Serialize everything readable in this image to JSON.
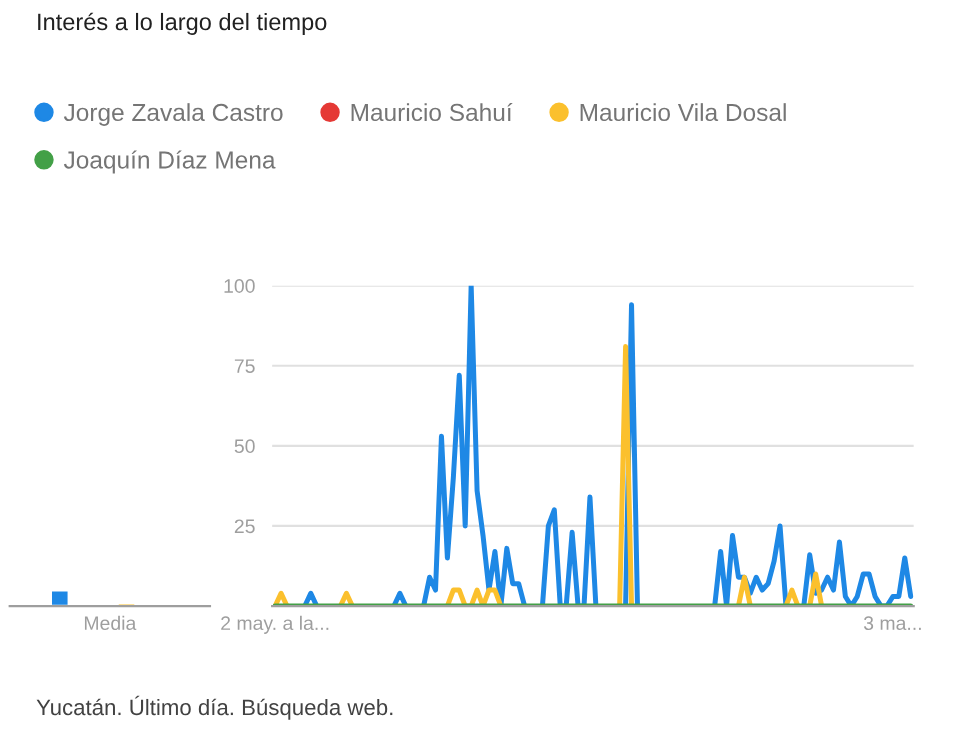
{
  "chart_data": [
    {
      "type": "bar",
      "title": "Interés a lo largo del tiempo",
      "categories": [
        "Media"
      ],
      "ylim": [
        0,
        100
      ],
      "tick_labels": "x",
      "grid": false,
      "legend": false,
      "series": [
        {
          "color": "#1e88e5",
          "values": [
            5
          ]
        },
        {
          "color": "#e53935",
          "values": [
            null
          ]
        },
        {
          "color": "#fbc02d",
          "values": [
            1
          ]
        },
        {
          "color": "#43a047",
          "values": [
            null
          ]
        }
      ]
    },
    {
      "type": "line",
      "annotations": [
        "Yucatán. Último día. Búsqueda web."
      ],
      "ylim": [
        0,
        100
      ],
      "yticks": [
        25,
        50,
        75,
        100
      ],
      "grid": "y",
      "legend": "top left",
      "marker": "none",
      "line_style": "solid",
      "categories": [
        "2 may. a la...",
        null,
        null,
        null,
        null,
        null,
        null,
        null,
        null,
        null,
        null,
        null,
        null,
        null,
        null,
        null,
        null,
        null,
        null,
        null,
        null,
        null,
        null,
        null,
        null,
        null,
        null,
        null,
        null,
        null,
        null,
        null,
        null,
        null,
        null,
        null,
        null,
        null,
        null,
        null,
        null,
        null,
        null,
        null,
        null,
        null,
        null,
        null,
        null,
        null,
        null,
        null,
        null,
        null,
        null,
        null,
        null,
        null,
        null,
        null,
        null,
        null,
        null,
        null,
        null,
        null,
        null,
        null,
        null,
        null,
        null,
        null,
        null,
        null,
        null,
        null,
        null,
        null,
        null,
        null,
        null,
        null,
        null,
        null,
        null,
        null,
        null,
        null,
        null,
        null,
        null,
        null,
        null,
        null,
        null,
        null,
        null,
        null,
        null,
        null,
        null,
        null,
        null,
        null,
        "3 ma...",
        null,
        null,
        null
      ],
      "series": [
        {
          "name": "Jorge Zavala Castro",
          "color": "#1e88e5",
          "values": [
            null,
            null,
            null,
            null,
            null,
            0,
            4,
            0,
            null,
            null,
            null,
            null,
            null,
            null,
            null,
            null,
            null,
            null,
            null,
            null,
            0,
            4,
            0,
            null,
            null,
            0,
            9,
            5,
            53,
            15,
            40,
            72,
            25,
            100,
            36,
            22,
            5,
            17,
            0,
            18,
            7,
            7,
            0,
            null,
            null,
            0,
            25,
            30,
            0,
            0,
            23,
            0,
            0,
            34,
            0,
            null,
            null,
            null,
            null,
            0,
            94,
            0,
            null,
            null,
            null,
            null,
            null,
            null,
            null,
            null,
            null,
            null,
            null,
            null,
            0,
            17,
            0,
            22,
            9,
            9,
            4,
            9,
            5,
            7,
            14,
            25,
            0,
            null,
            null,
            0,
            16,
            4,
            5,
            9,
            5,
            20,
            3,
            0,
            3,
            10,
            10,
            3,
            0,
            0,
            3,
            3,
            15,
            3
          ]
        },
        {
          "name": "Mauricio Sahuí",
          "color": "#e53935",
          "values": [
            null,
            null,
            null,
            null,
            null,
            null,
            null,
            null,
            null,
            null,
            null,
            null,
            null,
            null,
            null,
            null,
            null,
            null,
            null,
            null,
            null,
            null,
            null,
            null,
            null,
            null,
            null,
            null,
            null,
            null,
            null,
            null,
            null,
            null,
            null,
            null,
            null,
            null,
            null,
            null,
            null,
            null,
            null,
            null,
            null,
            null,
            null,
            null,
            null,
            null,
            null,
            null,
            null,
            null,
            null,
            null,
            null,
            null,
            null,
            null,
            null,
            null,
            null,
            null,
            null,
            null,
            null,
            null,
            null,
            null,
            null,
            null,
            null,
            null,
            null,
            null,
            null,
            null,
            null,
            null,
            null,
            null,
            null,
            null,
            null,
            null,
            null,
            null,
            null,
            null,
            null,
            null,
            null,
            null,
            null,
            null,
            null,
            null,
            null,
            null,
            null,
            null,
            null,
            null,
            null,
            null,
            null,
            null
          ]
        },
        {
          "name": "Mauricio Vila Dosal",
          "color": "#fbc02d",
          "values": [
            0,
            4,
            0,
            null,
            null,
            null,
            null,
            null,
            null,
            null,
            null,
            0,
            4,
            0,
            null,
            null,
            null,
            null,
            null,
            null,
            null,
            null,
            null,
            null,
            null,
            null,
            null,
            null,
            null,
            0,
            5,
            5,
            0,
            0,
            5,
            0,
            5,
            5,
            0,
            null,
            null,
            null,
            null,
            null,
            null,
            null,
            null,
            null,
            null,
            null,
            null,
            null,
            null,
            null,
            null,
            null,
            null,
            null,
            0,
            81,
            0,
            null,
            null,
            null,
            null,
            null,
            null,
            null,
            null,
            null,
            null,
            null,
            null,
            null,
            null,
            null,
            null,
            null,
            0,
            9,
            0,
            null,
            null,
            null,
            null,
            null,
            0,
            5,
            0,
            null,
            0,
            10,
            0,
            null,
            null,
            null,
            null,
            null,
            null,
            null,
            null,
            null,
            null,
            null,
            null,
            null,
            null,
            null
          ]
        },
        {
          "name": "Joaquín Díaz Mena",
          "color": "#43a047",
          "values": [
            0,
            0,
            0,
            0,
            0,
            0,
            0,
            0,
            0,
            0,
            0,
            0,
            0,
            0,
            0,
            0,
            0,
            0,
            0,
            0,
            0,
            0,
            0,
            0,
            0,
            0,
            0,
            0,
            0,
            0,
            0,
            0,
            0,
            0,
            0,
            0,
            0,
            0,
            0,
            0,
            0,
            0,
            0,
            0,
            0,
            0,
            0,
            0,
            0,
            0,
            0,
            0,
            0,
            0,
            0,
            0,
            0,
            0,
            0,
            0,
            0,
            0,
            0,
            0,
            0,
            0,
            0,
            0,
            0,
            0,
            0,
            0,
            0,
            0,
            0,
            0,
            0,
            0,
            0,
            0,
            0,
            0,
            0,
            0,
            0,
            0,
            0,
            0,
            0,
            0,
            0,
            0,
            0,
            0,
            0,
            0,
            0,
            0,
            0,
            0,
            0,
            0,
            0,
            0,
            0,
            0,
            0,
            0
          ]
        }
      ]
    }
  ]
}
